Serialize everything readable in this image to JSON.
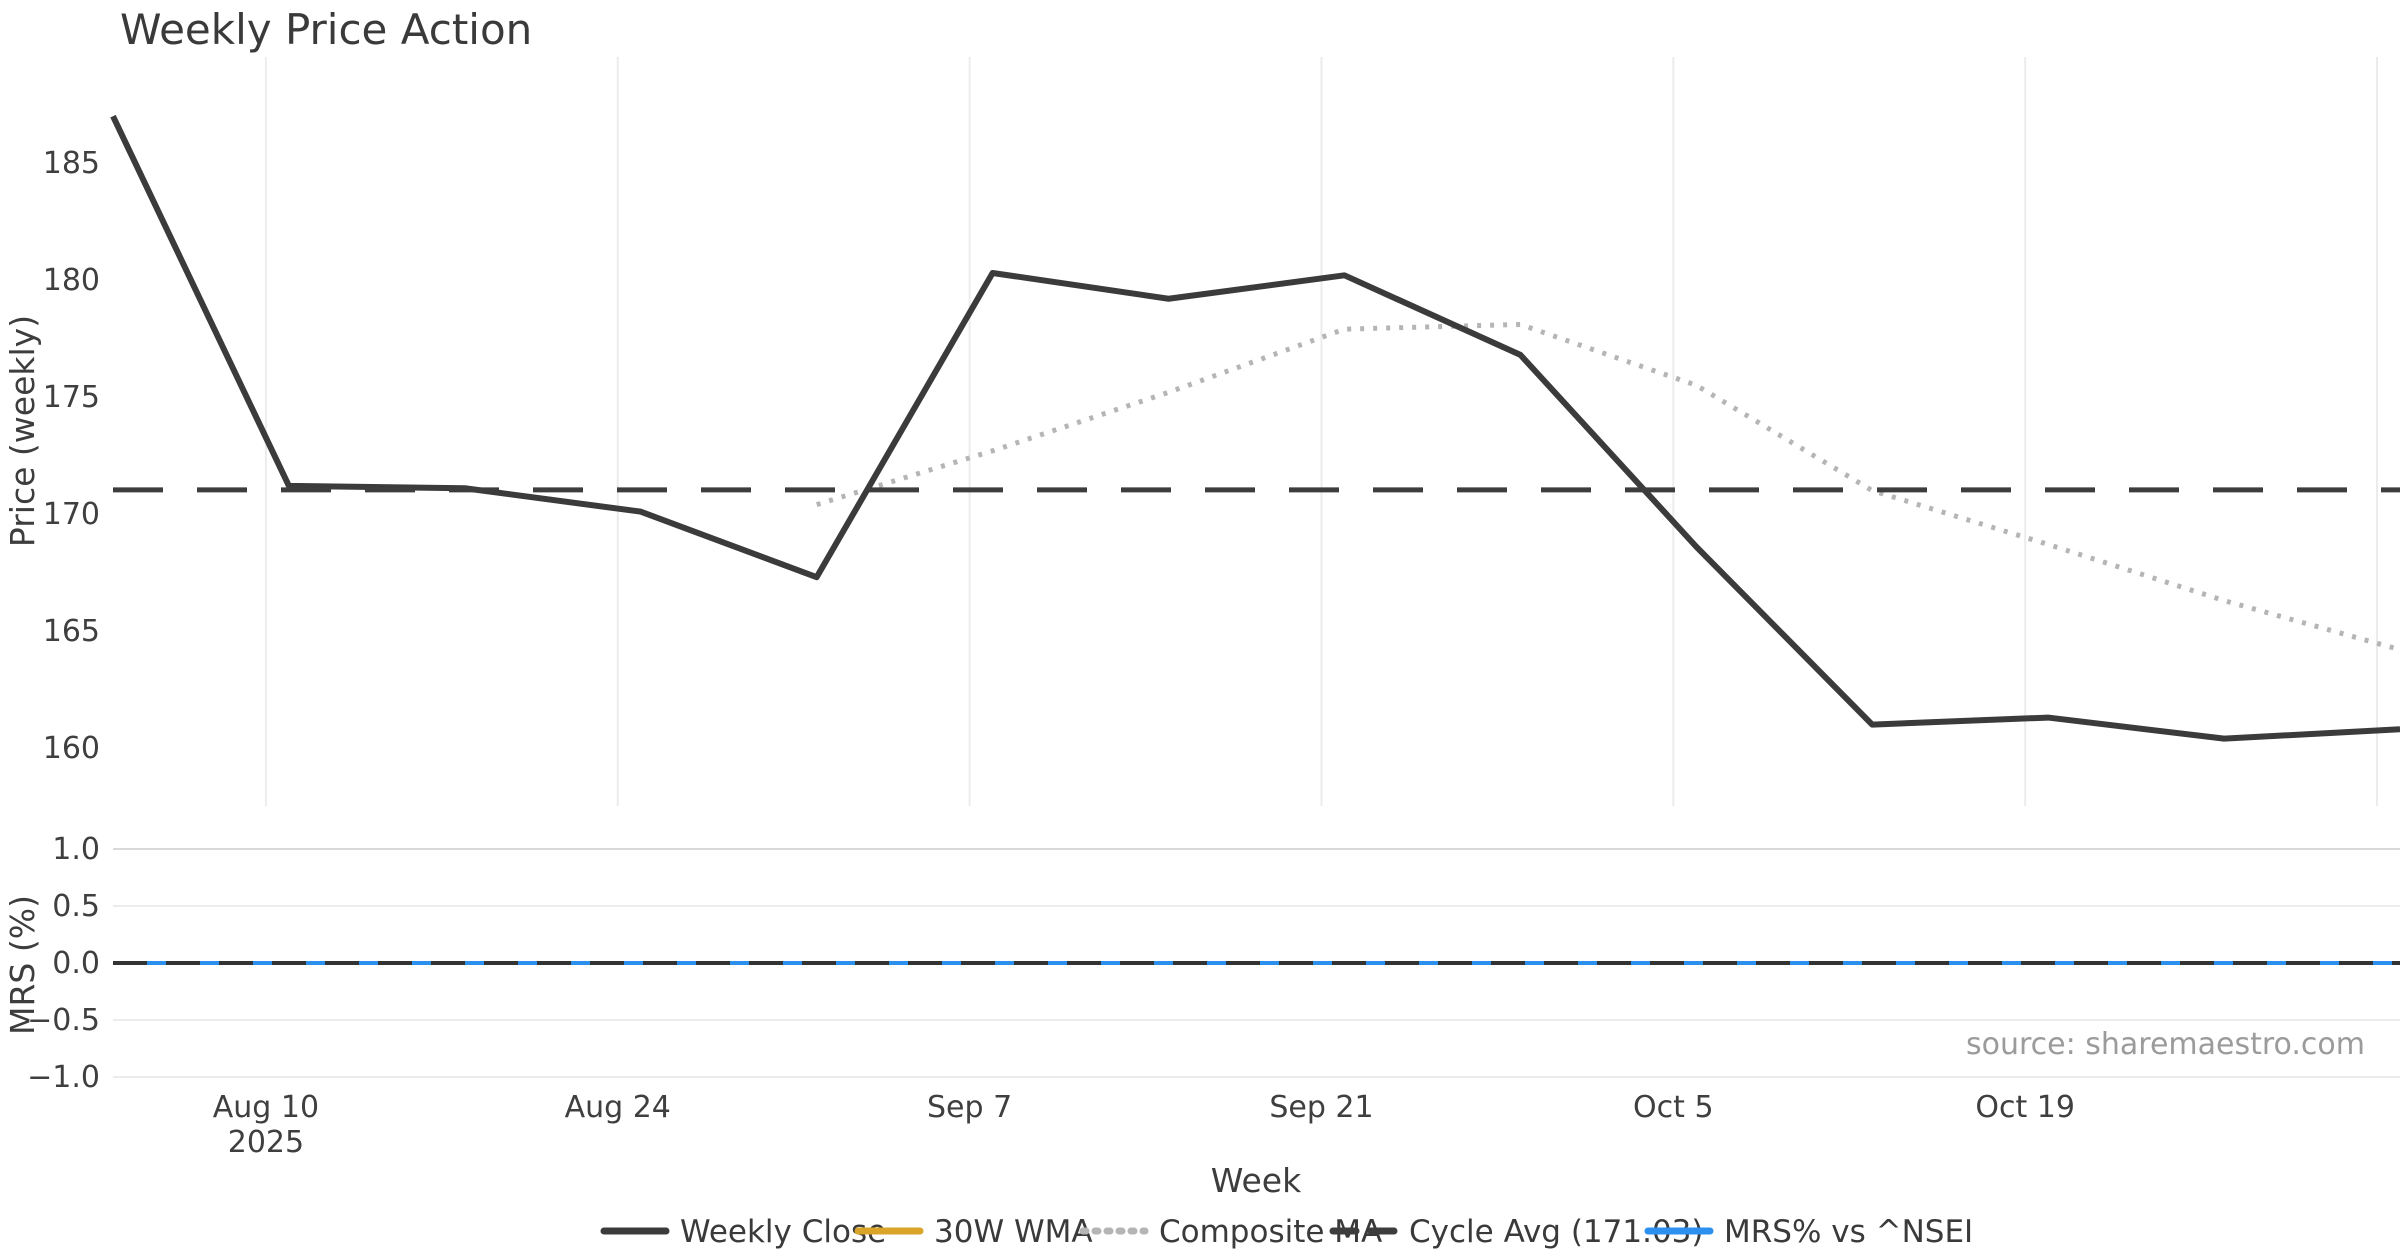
{
  "title": "Weekly Price Action",
  "source_note": "source: sharemaestro.com",
  "chart_data": {
    "type": "line",
    "title": "Weekly Price Action",
    "x": {
      "label": "Week",
      "n_points": 14,
      "ticks": [
        {
          "index": 1,
          "label": "Aug 10",
          "sub": "2025"
        },
        {
          "index": 3,
          "label": "Aug 24",
          "sub": ""
        },
        {
          "index": 5,
          "label": "Sep 7",
          "sub": ""
        },
        {
          "index": 7,
          "label": "Sep 21",
          "sub": ""
        },
        {
          "index": 9,
          "label": "Oct 5",
          "sub": ""
        },
        {
          "index": 11,
          "label": "Oct 19",
          "sub": ""
        },
        {
          "index": 13,
          "label": "",
          "sub": ""
        }
      ]
    },
    "panels": [
      {
        "name": "price",
        "ylabel": "Price (weekly)",
        "yticks": [
          185,
          180,
          175,
          170,
          165,
          160
        ],
        "ylim": [
          157.5,
          189.5
        ],
        "grid": "vertical-only",
        "series": [
          {
            "name": "Weekly Close",
            "color": "#3b3b3b",
            "style": "solid",
            "values": [
              187.0,
              171.2,
              171.1,
              170.1,
              167.3,
              180.3,
              179.2,
              180.2,
              176.8,
              168.6,
              161.0,
              161.3,
              160.4,
              160.8
            ]
          },
          {
            "name": "Composite MA",
            "color": "#b5b5b5",
            "style": "dotted",
            "values": [
              null,
              null,
              null,
              null,
              170.4,
              172.7,
              175.2,
              177.9,
              178.1,
              175.5,
              171.0,
              168.7,
              166.3,
              164.2
            ]
          }
        ],
        "reference_line": {
          "label": "Cycle Avg (171.03)",
          "value": 171.03,
          "color": "#3d3d3d",
          "style": "dashed"
        }
      },
      {
        "name": "mrs",
        "ylabel": "MRS (%)",
        "yticks": [
          "1.0",
          "0.5",
          "0.0",
          "−0.5",
          "−1.0"
        ],
        "ylim": [
          -1.05,
          1.05
        ],
        "grid": "horizontal-only",
        "series": [
          {
            "name": "MRS% vs ^NSEI",
            "color": "#2b90ee",
            "style": "solid",
            "values": [
              0,
              0,
              0,
              0,
              0,
              0,
              0,
              0,
              0,
              0,
              0,
              0,
              0,
              0
            ]
          }
        ],
        "reference_line": {
          "label": "",
          "value": 0,
          "color": "#333333",
          "style": "dashed"
        }
      }
    ],
    "legend": [
      {
        "label": "Weekly Close",
        "color": "#3b3b3b",
        "style": "solid"
      },
      {
        "label": "30W WMA",
        "color": "#d9a427",
        "style": "solid"
      },
      {
        "label": "Composite MA",
        "color": "#b5b5b5",
        "style": "dotted"
      },
      {
        "label": "Cycle Avg (171.03)",
        "color": "#3d3d3d",
        "style": "dashed"
      },
      {
        "label": "MRS% vs ^NSEI",
        "color": "#2b90ee",
        "style": "solid"
      }
    ],
    "colors": {
      "grid": "#ececec",
      "grid_top": "#d9d9d9",
      "text": "#3d3d3d",
      "muted": "#9b9b9b"
    },
    "legend_position": "bottom-center",
    "background": "#ffffff"
  }
}
